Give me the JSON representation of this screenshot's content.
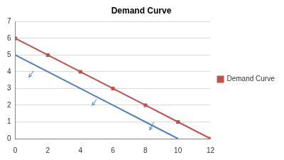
{
  "chart_data": {
    "type": "line",
    "title": "Demand Curve",
    "x": [
      0,
      2,
      4,
      6,
      8,
      10,
      12
    ],
    "series": [
      {
        "name": "Demand Curve",
        "color": "#c0504d",
        "marker": "square",
        "line_style": "solid",
        "values": [
          6,
          5,
          4,
          3,
          2,
          1,
          0
        ]
      },
      {
        "color": "#4f81bd",
        "marker": "none",
        "line_style": "solid",
        "values": [
          5,
          4,
          3,
          2,
          1,
          0,
          null
        ]
      }
    ],
    "xlim": [
      0,
      12
    ],
    "xticks": [
      0,
      2,
      4,
      6,
      8,
      10,
      12
    ],
    "ylim": [
      0,
      7
    ],
    "yticks": [
      0,
      1,
      2,
      3,
      4,
      5,
      6,
      7
    ],
    "grid": "y",
    "legend": "right"
  }
}
